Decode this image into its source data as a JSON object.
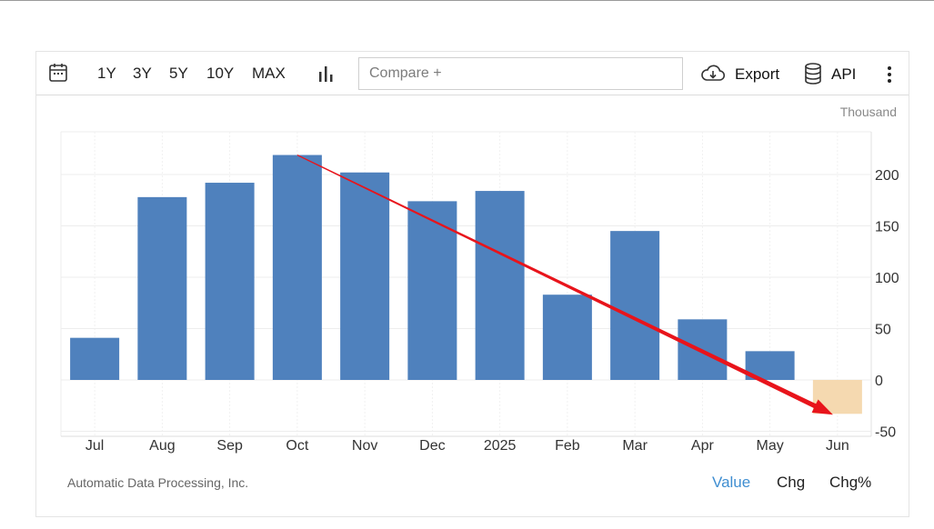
{
  "toolbar": {
    "ranges": [
      "1Y",
      "3Y",
      "5Y",
      "10Y",
      "MAX"
    ],
    "compare_placeholder": "Compare +",
    "export_label": "Export",
    "api_label": "API",
    "icons": {
      "calendar": "calendar-icon",
      "chart_type": "bar-chart-icon",
      "export": "cloud-download-icon",
      "api": "database-icon",
      "menu": "more-vertical-icon"
    }
  },
  "chart_data": {
    "type": "bar",
    "unit_label": "Thousand",
    "categories": [
      "Jul",
      "Aug",
      "Sep",
      "Oct",
      "Nov",
      "Dec",
      "2025",
      "Feb",
      "Mar",
      "Apr",
      "May",
      "Jun"
    ],
    "values": [
      41,
      178,
      192,
      219,
      202,
      174,
      184,
      83,
      145,
      59,
      28,
      -33
    ],
    "ylim": [
      -50,
      230
    ],
    "yticks": [
      -50,
      0,
      50,
      100,
      150,
      200
    ],
    "y_axis_position": "right",
    "grid": true,
    "colors": {
      "positive": "#4f81bd",
      "last_bar": "#f5d9b0",
      "trend_arrow": "#e8141b"
    },
    "trend_arrow": {
      "from": {
        "category": "Oct",
        "value": 219
      },
      "to": {
        "category": "Jun",
        "value": -33
      }
    }
  },
  "footer": {
    "source": "Automatic Data Processing, Inc.",
    "tabs": [
      "Value",
      "Chg",
      "Chg%"
    ],
    "active_tab": "Value"
  }
}
